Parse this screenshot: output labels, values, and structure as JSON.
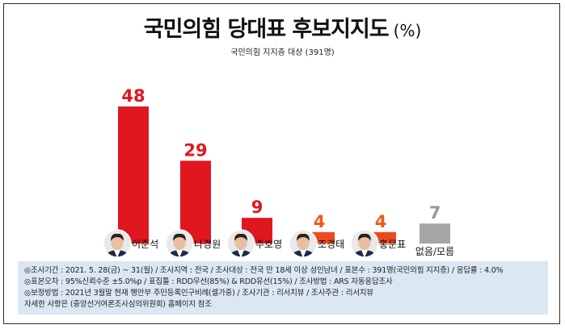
{
  "header": {
    "title": "국민의힘 당대표 후보지지도",
    "unit": "(%)",
    "subtitle": "국민의힘 지지층 대상 (391명)"
  },
  "colors": {
    "bar_red": "#e0171f",
    "bar_orange": "#ec4a1e",
    "bar_gray": "#a6a6a6",
    "label_red": "#e0171f",
    "label_orange": "#ee5a1a",
    "label_gray": "#999999"
  },
  "chart_data": {
    "type": "bar",
    "title": "국민의힘 당대표 후보지지도",
    "subtitle": "국민의힘 지지층 대상 (391명)",
    "unit": "%",
    "categories": [
      "이준석",
      "나경원",
      "주호영",
      "조경태",
      "홍문표",
      "없음/모름"
    ],
    "values": [
      48,
      29,
      9,
      4,
      4,
      7
    ],
    "bar_colors": [
      "#e0171f",
      "#e0171f",
      "#e0171f",
      "#ec4a1e",
      "#ec4a1e",
      "#a6a6a6"
    ],
    "label_colors": [
      "#e0171f",
      "#e0171f",
      "#e0171f",
      "#ee5a1a",
      "#ee5a1a",
      "#999999"
    ],
    "avatars": [
      "person-avatar",
      "person-avatar",
      "person-avatar",
      "person-avatar",
      "person-avatar",
      null
    ],
    "ylim": [
      0,
      50
    ],
    "grid": false,
    "legend": "none"
  },
  "footer": {
    "lines": [
      "◎조사기간 : 2021. 5. 28(금) ~ 31(월) / 조사지역 : 전국 / 조사대상 : 전국 만 18세 이상 성인남녀 / 표본수 : 391명(국민의힘 지지층) / 응답률 : 4.0%",
      "◎표본오차 : 95%신뢰수준 ±5.0%p  / 표집틀 : RDD무선(85%) & RDD유선(15%) / 조사방법 : ARS 자동응답조사",
      "◎보정방법 : 2021년 3월말 현재 행안부 주민등록인구비례(셀가중) / 조사기관 : 리서치뷰 / 조사주관 : 리서치뷰",
      "자세한 사항은 (중앙선거여론조사심의위원회) 홈페이지 참조"
    ]
  }
}
